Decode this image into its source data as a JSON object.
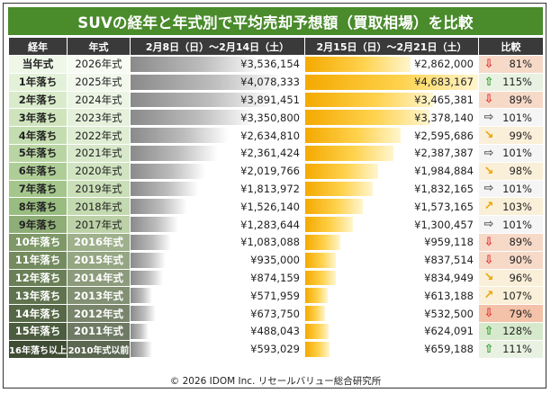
{
  "title": "SUVの経年と年式別で平均売却予想額（買取相場）を比較",
  "headers": {
    "age": "経年",
    "year": "年式",
    "period_a": "2月8日（日）〜2月14日（土）",
    "period_b": "2月15日（日）〜2月21日（土）",
    "compare": "比較"
  },
  "colors": {
    "title_bg": "#4a8b2c",
    "header_bg": "#3a3a3a",
    "period_a_bar": "#8a8a8a",
    "period_b_bar": "#f4a900",
    "up_arrow": "#2e9d2e",
    "down_arrow": "#e03030",
    "diag_arrow": "#e8a400",
    "flat_arrow": "#555555"
  },
  "chart_data": {
    "type": "table",
    "max_value": 4683167,
    "rows": [
      {
        "age": "当年式",
        "year": "2026年式",
        "a": 3536154,
        "a_label": "¥3,536,154",
        "b": 2862000,
        "b_label": "¥2,862,000",
        "pct": "81%",
        "trend": "down",
        "age_bg": "#eef7e8",
        "year_bg": "#f7fbf3",
        "cmp_bg": "#f7d9c8"
      },
      {
        "age": "1年落ち",
        "year": "2025年式",
        "a": 4078333,
        "a_label": "¥4,078,333",
        "b": 4683167,
        "b_label": "¥4,683,167",
        "pct": "115%",
        "trend": "up",
        "age_bg": "#e4f1d9",
        "year_bg": "#f2f8ec",
        "cmp_bg": "#e9f2e2"
      },
      {
        "age": "2年落ち",
        "year": "2024年式",
        "a": 3891451,
        "a_label": "¥3,891,451",
        "b": 3465381,
        "b_label": "¥3,465,381",
        "pct": "89%",
        "trend": "down",
        "age_bg": "#d9ebcb",
        "year_bg": "#ecf5e4",
        "cmp_bg": "#f7d9c8"
      },
      {
        "age": "3年落ち",
        "year": "2023年式",
        "a": 3350800,
        "a_label": "¥3,350,800",
        "b": 3378140,
        "b_label": "¥3,378,140",
        "pct": "101%",
        "trend": "flat",
        "age_bg": "#cfe4bd",
        "year_bg": "#e6f1dc",
        "cmp_bg": "#f5f5f5"
      },
      {
        "age": "4年落ち",
        "year": "2022年式",
        "a": 2634810,
        "a_label": "¥2,634,810",
        "b": 2595686,
        "b_label": "¥2,595,686",
        "pct": "99%",
        "trend": "down-right",
        "age_bg": "#c4ddb0",
        "year_bg": "#dfedd3",
        "cmp_bg": "#faefd8"
      },
      {
        "age": "5年落ち",
        "year": "2021年式",
        "a": 2361424,
        "a_label": "¥2,361,424",
        "b": 2387387,
        "b_label": "¥2,387,387",
        "pct": "101%",
        "trend": "flat",
        "age_bg": "#b9d5a3",
        "year_bg": "#d8e8ca",
        "cmp_bg": "#f5f5f5"
      },
      {
        "age": "6年落ち",
        "year": "2020年式",
        "a": 2019766,
        "a_label": "¥2,019,766",
        "b": 1984884,
        "b_label": "¥1,984,884",
        "pct": "98%",
        "trend": "down-right",
        "age_bg": "#aecd97",
        "year_bg": "#d1e4c1",
        "cmp_bg": "#faefd8"
      },
      {
        "age": "7年落ち",
        "year": "2019年式",
        "a": 1813972,
        "a_label": "¥1,813,972",
        "b": 1832165,
        "b_label": "¥1,832,165",
        "pct": "101%",
        "trend": "flat",
        "age_bg": "#a4c58b",
        "year_bg": "#cadfb8",
        "cmp_bg": "#f5f5f5"
      },
      {
        "age": "8年落ち",
        "year": "2018年式",
        "a": 1526140,
        "a_label": "¥1,526,140",
        "b": 1573165,
        "b_label": "¥1,573,165",
        "pct": "103%",
        "trend": "up-right",
        "age_bg": "#99bc80",
        "year_bg": "#c3d9af",
        "cmp_bg": "#faefd8"
      },
      {
        "age": "9年落ち",
        "year": "2017年式",
        "a": 1283644,
        "a_label": "¥1,283,644",
        "b": 1300457,
        "b_label": "¥1,300,457",
        "pct": "101%",
        "trend": "flat",
        "age_bg": "#8fae77",
        "year_bg": "#bcd1a7",
        "cmp_bg": "#f5f5f5"
      },
      {
        "age": "10年落ち",
        "year": "2016年式",
        "a": 1083088,
        "a_label": "¥1,083,088",
        "b": 959118,
        "b_label": "¥959,118",
        "pct": "89%",
        "trend": "down",
        "age_bg": "#7f9868",
        "year_bg": "#9fb08c",
        "cmp_bg": "#f7d9c8"
      },
      {
        "age": "11年落ち",
        "year": "2015年式",
        "a": 935000,
        "a_label": "¥935,000",
        "b": 837514,
        "b_label": "¥837,514",
        "pct": "90%",
        "trend": "down",
        "age_bg": "#748b5f",
        "year_bg": "#95a683",
        "cmp_bg": "#f7d9c8"
      },
      {
        "age": "12年落ち",
        "year": "2014年式",
        "a": 874159,
        "a_label": "¥874,159",
        "b": 834949,
        "b_label": "¥834,949",
        "pct": "96%",
        "trend": "down-right",
        "age_bg": "#6a7f57",
        "year_bg": "#8c9b7b",
        "cmp_bg": "#faefd8"
      },
      {
        "age": "13年落ち",
        "year": "2013年式",
        "a": 571959,
        "a_label": "¥571,959",
        "b": 613188,
        "b_label": "¥613,188",
        "pct": "107%",
        "trend": "up-right",
        "age_bg": "#60734f",
        "year_bg": "#829073",
        "cmp_bg": "#faefd8"
      },
      {
        "age": "14年落ち",
        "year": "2012年式",
        "a": 673750,
        "a_label": "¥673,750",
        "b": 532500,
        "b_label": "¥532,500",
        "pct": "79%",
        "trend": "down",
        "age_bg": "#566847",
        "year_bg": "#78856b",
        "cmp_bg": "#f3c2a8"
      },
      {
        "age": "15年落ち",
        "year": "2011年式",
        "a": 488043,
        "a_label": "¥488,043",
        "b": 624091,
        "b_label": "¥624,091",
        "pct": "128%",
        "trend": "up",
        "age_bg": "#4c5c3f",
        "year_bg": "#6e7a63",
        "cmp_bg": "#d7e9cc"
      },
      {
        "age": "16年落ち以上",
        "year": "2010年式以前",
        "a": 593029,
        "a_label": "¥593,029",
        "b": 659188,
        "b_label": "¥659,188",
        "pct": "111%",
        "trend": "up",
        "age_bg": "#3f4c34",
        "year_bg": "#5c6752",
        "cmp_bg": "#e9f2e2"
      }
    ]
  },
  "footer": "© 2026 IDOM Inc. リセールバリュー総合研究所"
}
